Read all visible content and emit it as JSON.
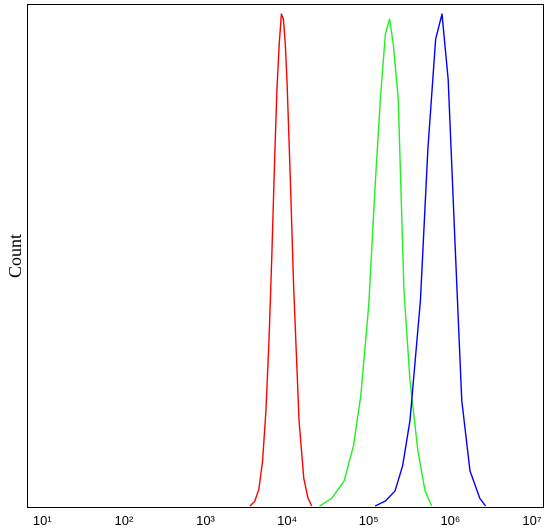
{
  "chart_data": {
    "type": "line",
    "y_label": "Count",
    "xscale": "log",
    "xlim": [
      6.5,
      13650000
    ],
    "ylim": [
      0,
      100
    ],
    "xticks": [
      {
        "value": 10,
        "label": "10¹"
      },
      {
        "value": 100,
        "label": "10²"
      },
      {
        "value": 1000,
        "label": "10³"
      },
      {
        "value": 10000,
        "label": "10⁴"
      },
      {
        "value": 100000,
        "label": "10⁵"
      },
      {
        "value": 1000000,
        "label": "10⁶"
      },
      {
        "value": 10000000,
        "label": "10⁷"
      }
    ],
    "series": [
      {
        "color": "#ff0000",
        "x": [
          3500,
          4000,
          4500,
          5000,
          5500,
          6000,
          6500,
          7000,
          7500,
          8000,
          8500,
          9000,
          9500,
          10000,
          11000,
          12000,
          14000,
          16000,
          18000,
          20000
        ],
        "values": [
          0,
          0.9,
          3.3,
          8.9,
          19,
          33,
          50,
          68,
          83,
          92,
          98,
          97,
          92,
          84,
          64,
          44,
          17,
          5.5,
          1.6,
          0
        ]
      },
      {
        "color": "#22ee22",
        "x": [
          25000,
          35000,
          50000,
          65000,
          80000,
          100000,
          120000,
          140000,
          160000,
          180000,
          200000,
          230000,
          270000,
          320000,
          400000,
          490000,
          590000
        ],
        "values": [
          0,
          1.5,
          5,
          12,
          22,
          40,
          64,
          82,
          94,
          97,
          92,
          81,
          43,
          25,
          11,
          3,
          0
        ]
      },
      {
        "color": "#0000ff",
        "x": [
          120000,
          160000,
          210000,
          260000,
          320000,
          430000,
          530000,
          660000,
          790000,
          940000,
          1150000,
          1380000,
          1740000,
          2300000,
          2700000
        ],
        "values": [
          0,
          1,
          3,
          8,
          17,
          41,
          71,
          93,
          98,
          85,
          51,
          21,
          7,
          1.5,
          0
        ]
      }
    ]
  }
}
